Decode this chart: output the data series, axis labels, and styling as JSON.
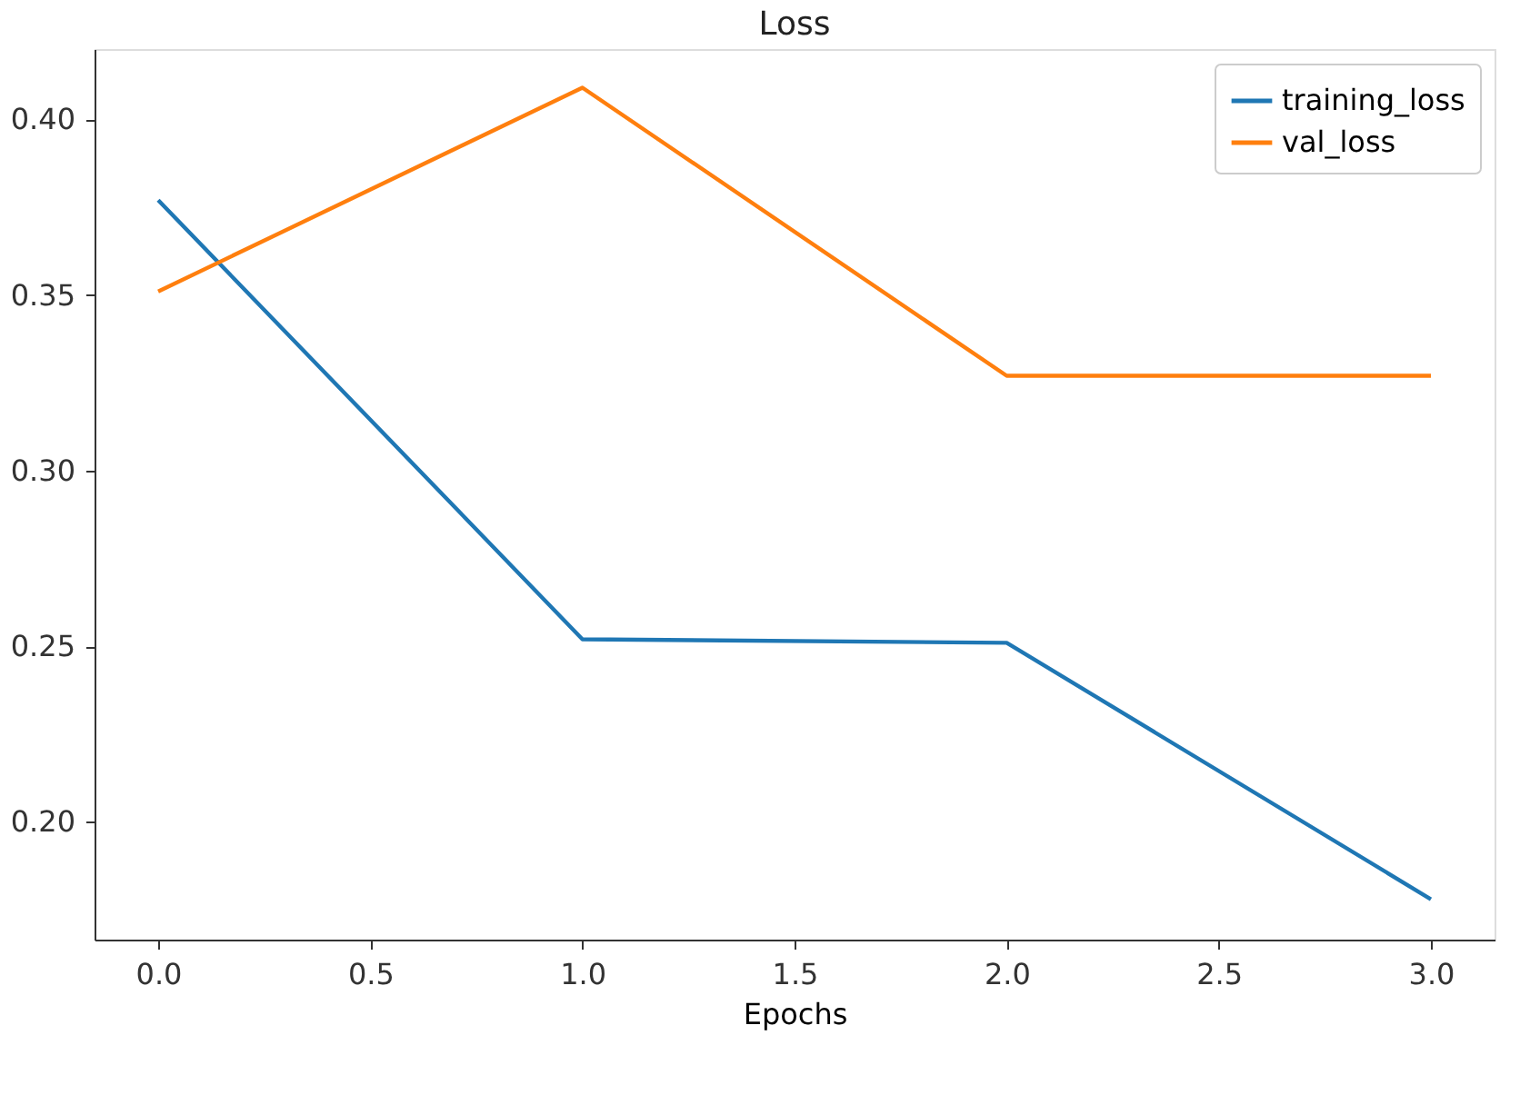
{
  "chart_data": {
    "type": "line",
    "title": "Loss",
    "xlabel": "Epochs",
    "x": [
      0,
      1,
      2,
      3
    ],
    "series": [
      {
        "name": "training_loss",
        "color": "#1f77b4",
        "values": [
          0.377,
          0.252,
          0.251,
          0.178
        ]
      },
      {
        "name": "val_loss",
        "color": "#ff7f0e",
        "values": [
          0.351,
          0.409,
          0.327,
          0.327
        ]
      }
    ],
    "xlim": [
      -0.15,
      3.15
    ],
    "ylim": [
      0.1665,
      0.42
    ],
    "xticks": [
      {
        "value": 0,
        "label": "0.0"
      },
      0.5,
      {
        "value": 1,
        "label": "1.0"
      },
      1.5,
      {
        "value": 2,
        "label": "2.0"
      },
      2.5,
      {
        "value": 3,
        "label": "3.0"
      }
    ],
    "yticks": [
      {
        "value": 0.2,
        "label": "0.20"
      },
      0.25,
      {
        "value": 0.3,
        "label": "0.30"
      },
      0.35,
      {
        "value": 0.4,
        "label": "0.40"
      }
    ],
    "legend": "top right",
    "grid": false,
    "marker": "none",
    "line_style": "solid"
  }
}
